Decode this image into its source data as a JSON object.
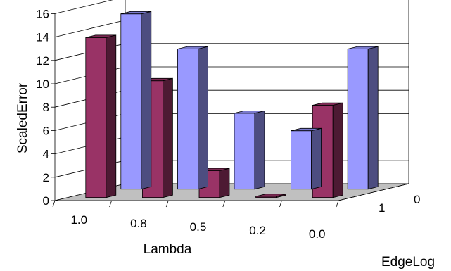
{
  "chart_data": {
    "type": "bar",
    "title": "",
    "xlabel": "Lambda",
    "ylabel": "ScaledError",
    "zlabel": "EdgeLog",
    "categories": [
      "1.0",
      "0.8",
      "0.5",
      "0.2",
      "0.0"
    ],
    "yticks": [
      "0",
      "2",
      "4",
      "6",
      "8",
      "10",
      "12",
      "14",
      "16"
    ],
    "ylim": [
      0,
      16
    ],
    "series": [
      {
        "name": "0",
        "color": "#9999ff",
        "values": [
          15.0,
          12.0,
          6.5,
          5.0,
          12.0
        ]
      },
      {
        "name": "1",
        "color": "#993366",
        "values": [
          13.7,
          10.0,
          2.3,
          0.1,
          7.9
        ]
      }
    ],
    "grid": true
  }
}
